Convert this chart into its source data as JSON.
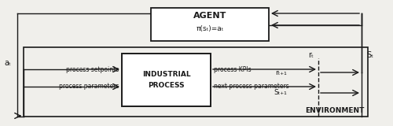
{
  "bg_color": "#f0efeb",
  "box_color": "#ffffff",
  "line_color": "#1a1a1a",
  "text_color": "#1a1a1a",
  "agent_label": "AGENT",
  "agent_sublabel": "π(sₜ)=aₜ",
  "env_label": "ENVIRONMENT",
  "process_label1": "INDUSTRIAL",
  "process_label2": "PROCESS",
  "labels": {
    "at_left": "aₜ",
    "rt": "rₜ",
    "st": "Sₜ",
    "rt1": "rₜ₊₁",
    "st1": "Sₜ₊₁",
    "proc_setpoints": "process setpoints",
    "proc_params": "process parameters",
    "proc_kpis": "process KPIs",
    "next_proc_params": "next process parameters"
  }
}
